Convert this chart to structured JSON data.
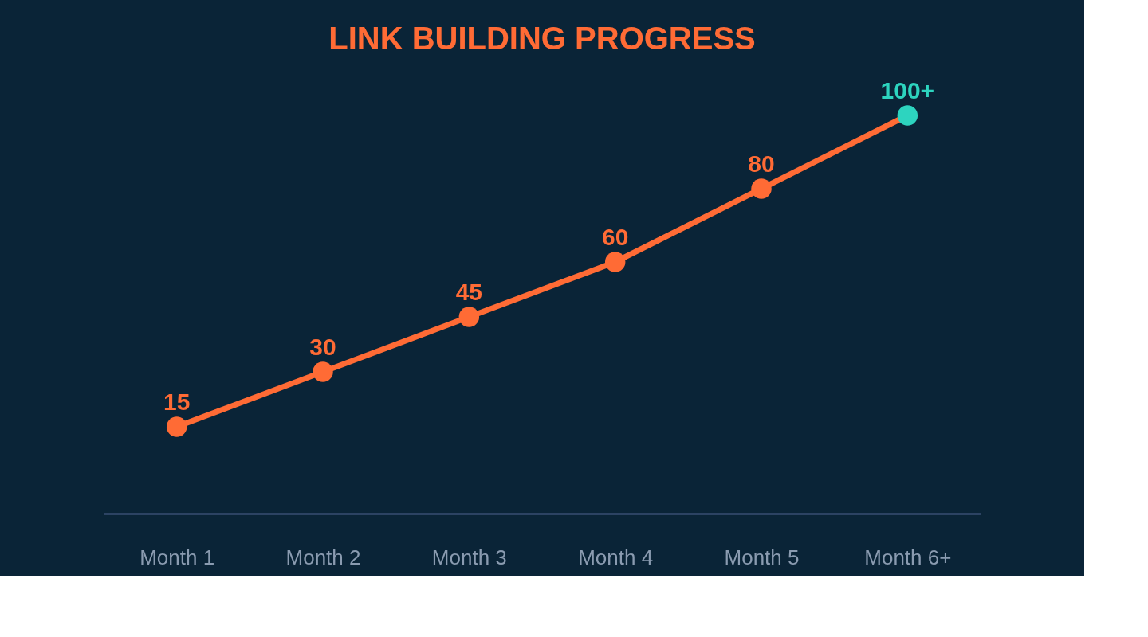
{
  "chart_data": {
    "type": "line",
    "title": "LINK BUILDING PROGRESS",
    "categories": [
      "Month 1",
      "Month 2",
      "Month 3",
      "Month 4",
      "Month 5",
      "Month 6+"
    ],
    "series": [
      {
        "color": "#ff6b35",
        "colors": [
          "#ff6b35",
          "#ff6b35",
          "#ff6b35",
          "#ff6b35",
          "#ff6b35",
          "#2dd4bf"
        ],
        "values": [
          15,
          30,
          45,
          60,
          80,
          100
        ],
        "value_labels": [
          "15",
          "30",
          "45",
          "60",
          "80",
          "100+"
        ]
      }
    ],
    "marker": "circle",
    "line_style": "solid",
    "tick_labels": "x"
  }
}
